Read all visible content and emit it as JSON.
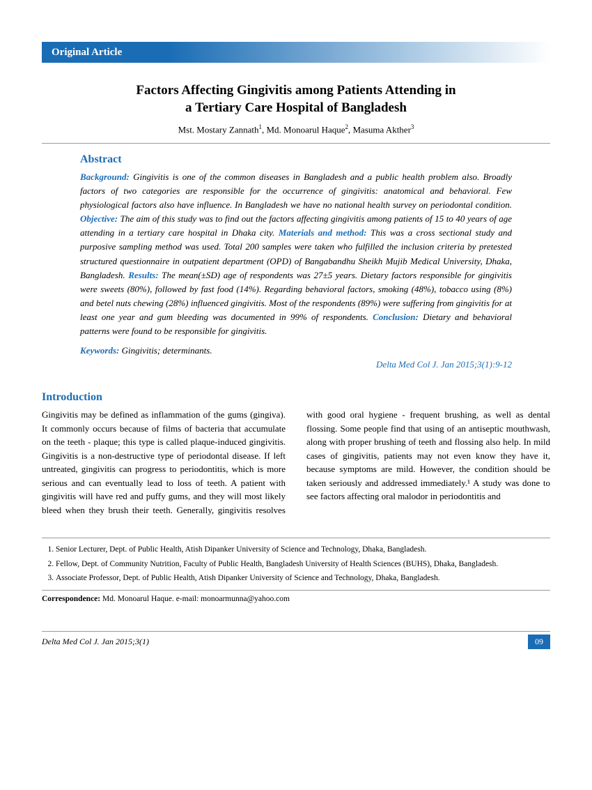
{
  "article_type": "Original Article",
  "title_line1": "Factors Affecting Gingivitis among Patients Attending in",
  "title_line2": "a Tertiary Care Hospital of Bangladesh",
  "authors_html": "Mst. Mostary Zannath<sup>1</sup>, Md. Monoarul Haque<sup>2</sup>, Masuma Akther<sup>3</sup>",
  "abstract_heading": "Abstract",
  "abstract": {
    "background_label": "Background:",
    "background": " Gingivitis is one of the common diseases in Bangladesh and a public health problem also. Broadly factors of two categories are responsible for the occurrence of gingivitis: anatomical and behavioral.  Few physiological factors also have  influence. In Bangladesh we have no national health survey on periodontal condition. ",
    "objective_label": "Objective:",
    "objective": " The aim of this study was to find out the factors affecting gingivitis among patients of 15 to 40 years of age attending in a tertiary care hospital in Dhaka city. ",
    "mm_label": "Materials and method:",
    "mm": " This was a cross sectional study and purposive sampling method was used. Total 200 samples were taken who fulfilled the inclusion criteria by pretested structured questionnaire in outpatient department (OPD) of Bangabandhu Sheikh Mujib Medical University, Dhaka, Bangladesh. ",
    "results_label": "Results:",
    "results": " The mean(±SD) age of respondents was 27±5 years. Dietary factors responsible for gingivitis were sweets (80%), followed by fast food (14%). Regarding behavioral factors, smoking (48%), tobacco using (8%) and betel nuts chewing (28%) influenced gingivitis. Most of the respondents (89%) were suffering from gingivitis for at least one year and gum bleeding was documented in 99% of respondents. ",
    "conclusion_label": "Conclusion:",
    "conclusion": " Dietary and behavioral patterns were found to be responsible for gingivitis."
  },
  "keywords_label": "Keywords:",
  "keywords": " Gingivitis; determinants.",
  "citation": "Delta Med Col J. Jan 2015;3(1):9-12",
  "introduction_heading": "Introduction",
  "introduction_body": "Gingivitis may be defined as inflammation of the gums (gingiva). It commonly occurs because of films of bacteria that accumulate on the teeth - plaque; this type is called plaque-induced gingivitis. Gingivitis is a non-destructive type of periodontal disease. If left untreated, gingivitis can progress to periodontitis, which is more serious and can eventually lead to loss of teeth. A patient with gingivitis will have red and puffy gums, and they will most likely bleed when they brush their teeth. Generally, gingivitis resolves with good oral hygiene - frequent brushing, as well as dental flossing. Some people find that using of an antiseptic mouthwash, along with proper brushing of teeth and flossing also help. In mild cases of gingivitis, patients may not even know they have it, because symptoms are mild. However, the condition should be taken seriously and addressed immediately.¹ A study was done to see factors affecting oral malodor in periodontitis and",
  "affiliations": [
    "Senior Lecturer, Dept. of Public Health, Atish Dipanker University of Science and Technology, Dhaka, Bangladesh.",
    "Fellow, Dept. of Community Nutrition, Faculty of Public Health, Bangladesh University of Health Sciences (BUHS), Dhaka, Bangladesh.",
    "Associate Professor, Dept. of Public Health, Atish Dipanker University of Science and Technology, Dhaka, Bangladesh."
  ],
  "correspondence_label": "Correspondence:",
  "correspondence": " Md. Monoarul Haque. e-mail: monoarmunna@yahoo.com",
  "footer_journal": "Delta Med Col J. Jan 2015;3(1)",
  "page_number": "09",
  "colors": {
    "accent": "#1a6db5",
    "text": "#000000",
    "rule": "#999999",
    "bg": "#ffffff"
  }
}
